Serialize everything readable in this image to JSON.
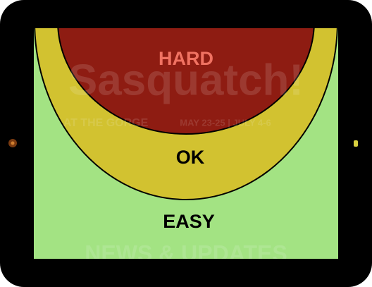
{
  "zones": [
    {
      "label": "HARD"
    },
    {
      "label": "OK"
    },
    {
      "label": "EASY"
    }
  ],
  "website": {
    "title": "Sasquatch!",
    "subtitle": "AT THE GORGE",
    "dates": "MAY 23-25 | JULY 4-6",
    "heading": "NEWS & UPDATES"
  }
}
